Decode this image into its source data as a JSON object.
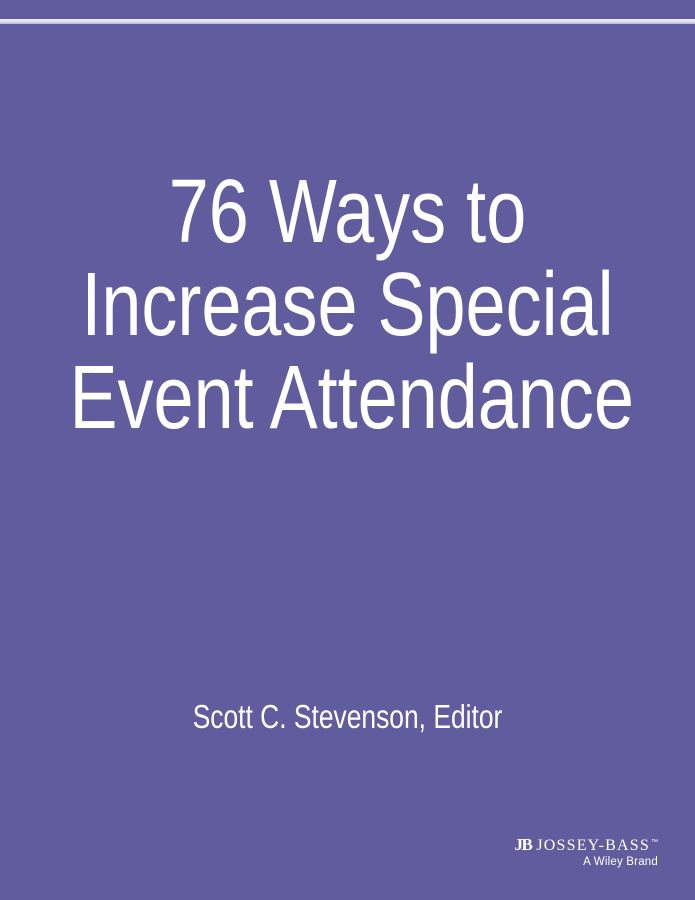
{
  "cover": {
    "background_color": "#605C9E",
    "text_color": "#FFFFFF",
    "top_stripe_colors": [
      "#EFEEF7",
      "#B9B6D8"
    ],
    "title": {
      "lines": [
        "76 Ways to",
        "Increase Special",
        "Event Attendance"
      ]
    },
    "editor": "Scott C. Stevenson, Editor",
    "publisher": {
      "monogram": "JB",
      "name": "JOSSEY-BASS",
      "trademark": "™",
      "tagline": "A Wiley Brand"
    }
  }
}
